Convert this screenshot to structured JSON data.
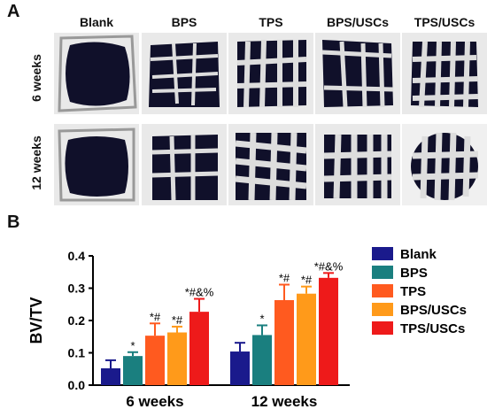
{
  "panel_a": {
    "letter": "A",
    "columns": [
      "Blank",
      "BPS",
      "TPS",
      "BPS/USCs",
      "TPS/USCs"
    ],
    "rows": [
      "6 weeks",
      "12 weeks"
    ]
  },
  "panel_b": {
    "letter": "B"
  },
  "chart_data": {
    "type": "bar",
    "ylabel": "BV/TV",
    "xlabel": "",
    "ylim": [
      0,
      0.4
    ],
    "yticks": [
      "0.0",
      "0.1",
      "0.2",
      "0.3",
      "0.4"
    ],
    "categories": [
      "6 weeks",
      "12 weeks"
    ],
    "legend_position": "right",
    "series": [
      {
        "name": "Blank",
        "color": "#1a1a8c",
        "values": [
          0.052,
          0.104
        ],
        "errors": [
          0.025,
          0.027
        ],
        "annotations": [
          "",
          ""
        ]
      },
      {
        "name": "BPS",
        "color": "#1a7f7f",
        "values": [
          0.09,
          0.155
        ],
        "errors": [
          0.012,
          0.03
        ],
        "annotations": [
          "*",
          "*"
        ]
      },
      {
        "name": "TPS",
        "color": "#ff5a1f",
        "values": [
          0.153,
          0.263
        ],
        "errors": [
          0.038,
          0.048
        ],
        "annotations": [
          "*#",
          "*#"
        ]
      },
      {
        "name": "BPS/USCs",
        "color": "#ff9a1a",
        "values": [
          0.163,
          0.283
        ],
        "errors": [
          0.018,
          0.022
        ],
        "annotations": [
          "*#",
          "*#"
        ]
      },
      {
        "name": "TPS/USCs",
        "color": "#ee1a1a",
        "values": [
          0.227,
          0.332
        ],
        "errors": [
          0.04,
          0.015
        ],
        "annotations": [
          "*#&%",
          "*#&%"
        ]
      }
    ]
  }
}
